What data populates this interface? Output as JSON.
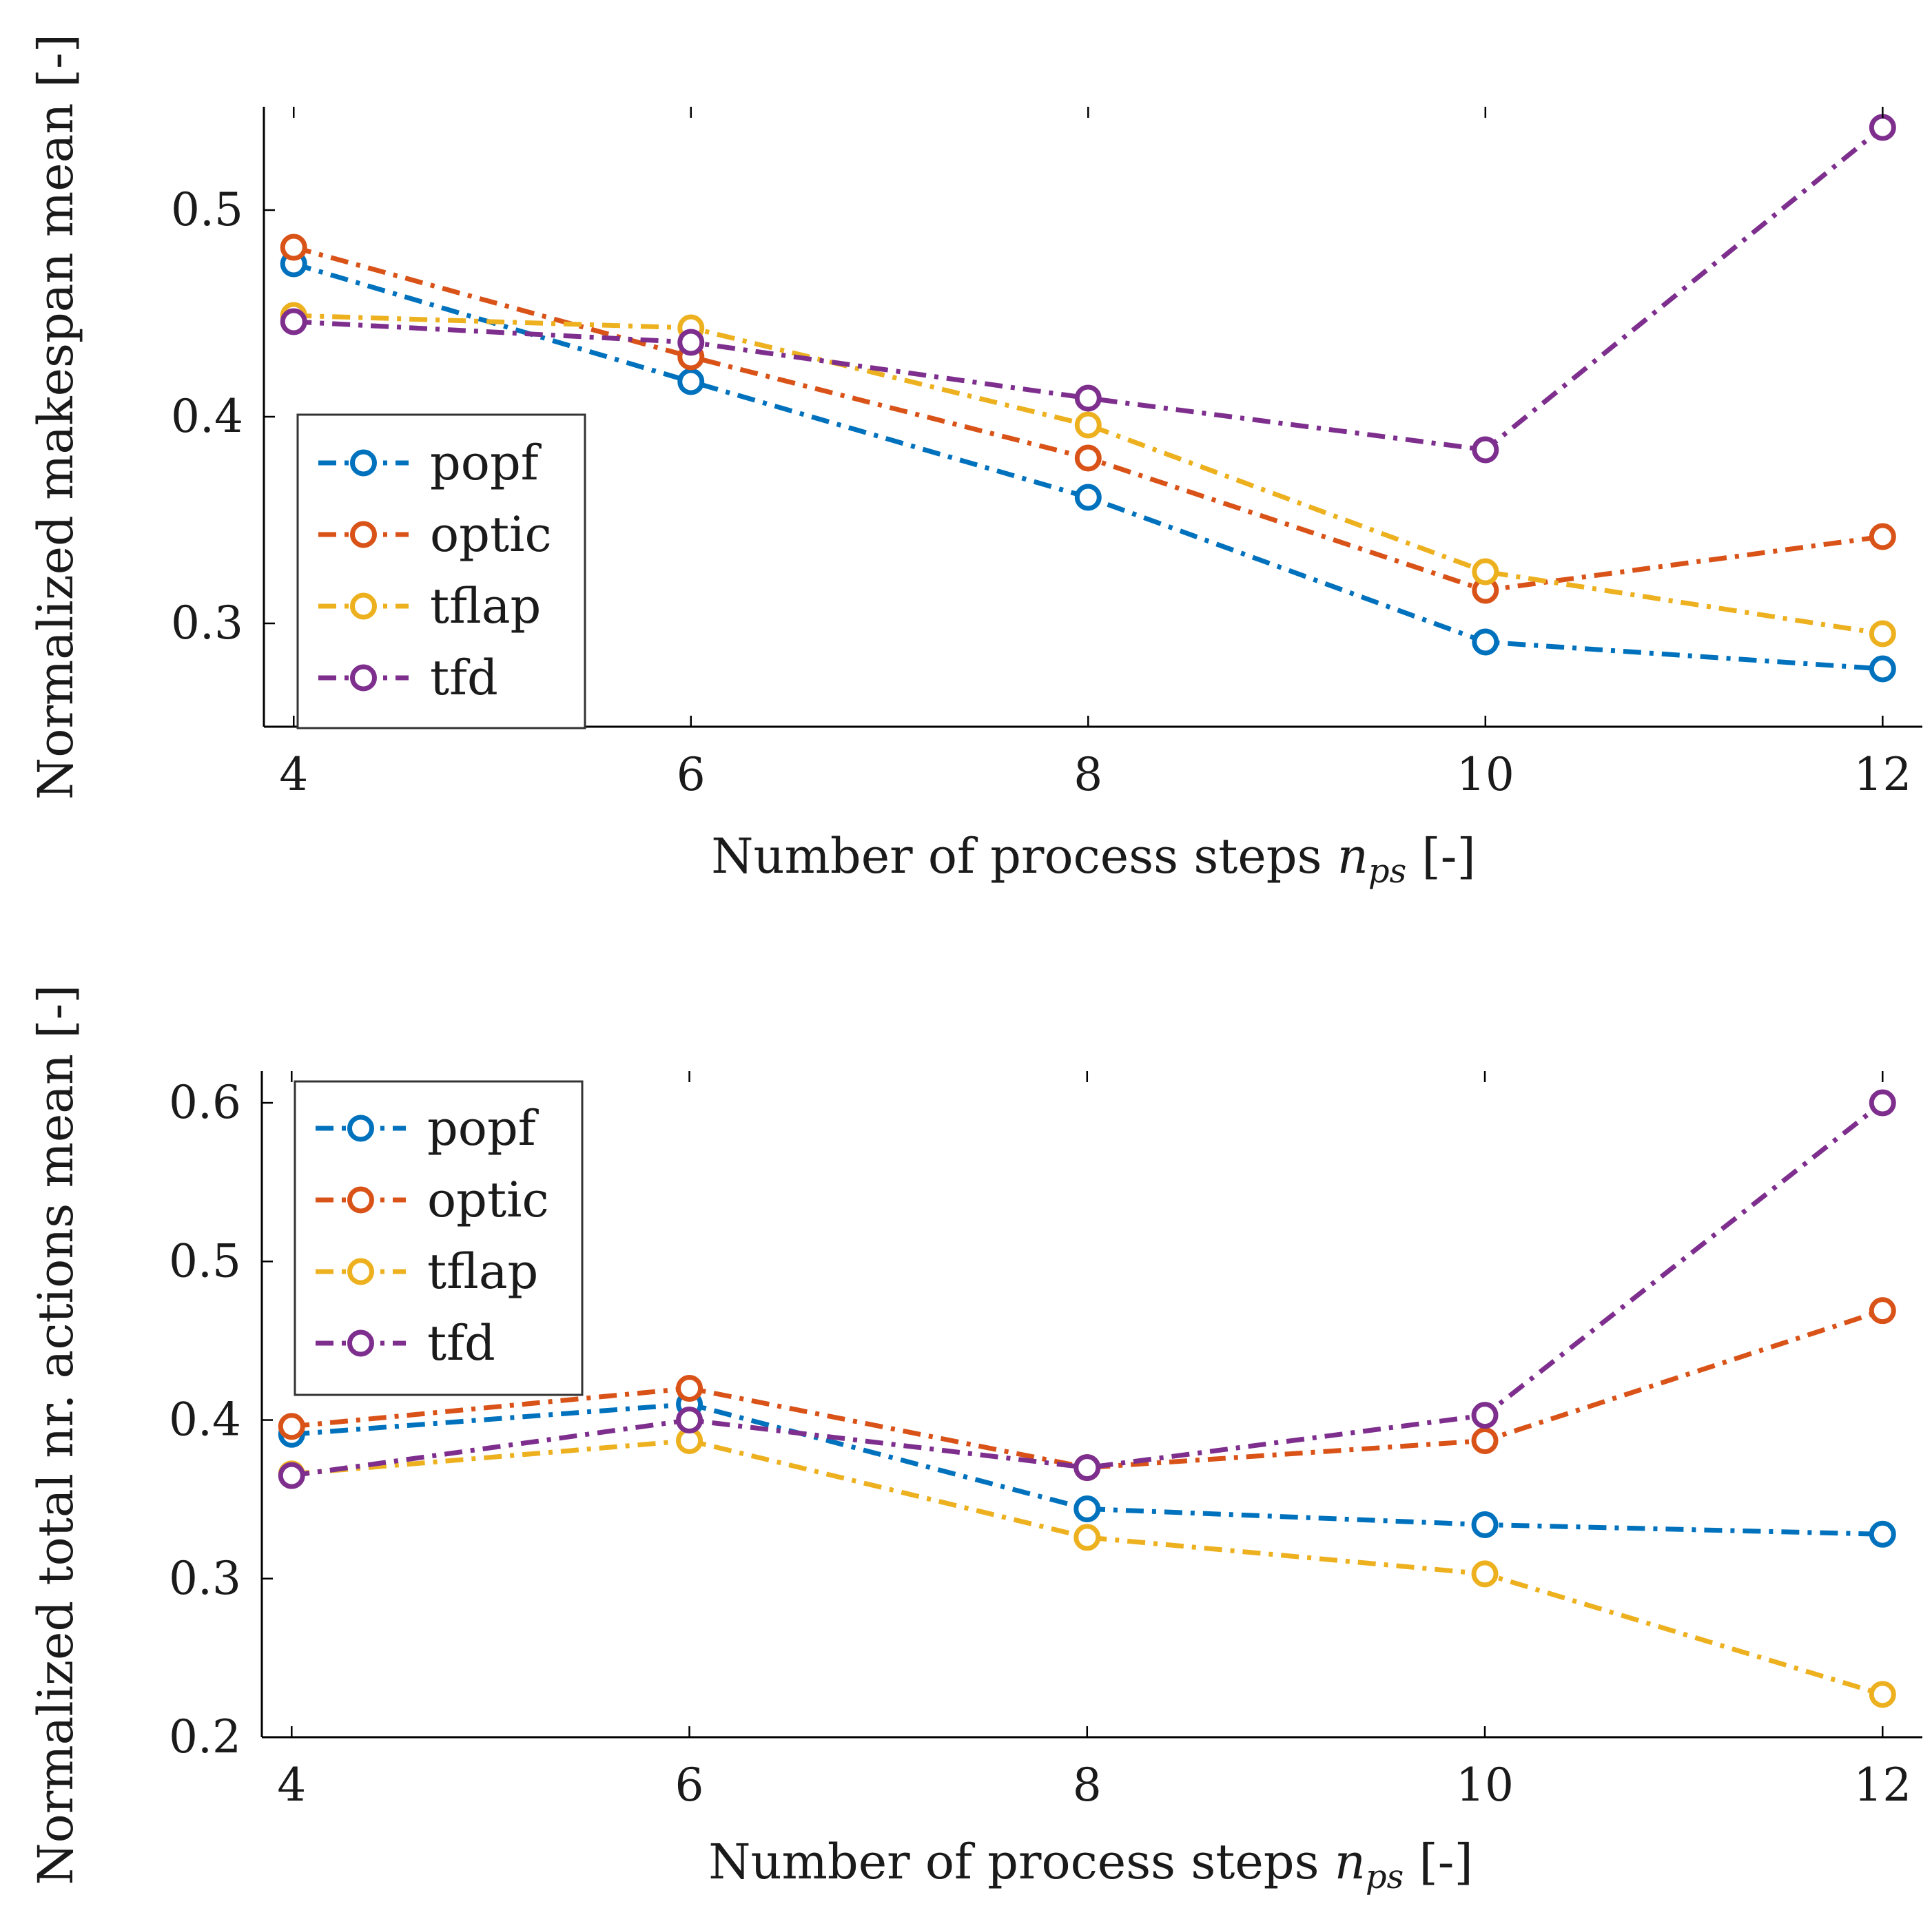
{
  "colors": {
    "popf": "#0072BD",
    "optic": "#D95319",
    "tflap": "#EDB120",
    "tfd": "#7E2F8E"
  },
  "chart_data": [
    {
      "type": "line",
      "title": "",
      "xlabel_main": "Number of process steps ",
      "xlabel_var": "n",
      "xlabel_sub": "ps",
      "xlabel_unit": " [-]",
      "ylabel": "Normalized makespan mean [-]",
      "x": [
        4,
        6,
        8,
        10,
        12
      ],
      "xlim": [
        3.85,
        12.2
      ],
      "ylim": [
        0.25,
        0.55
      ],
      "xticks": [
        "4",
        "6",
        "8",
        "10",
        "12"
      ],
      "yticks": [
        "0.3",
        "0.4",
        "0.5"
      ],
      "legend_position": "left-bottom",
      "series": [
        {
          "name": "popf",
          "color_key": "popf",
          "values": [
            0.474,
            0.417,
            0.361,
            0.291,
            0.278
          ]
        },
        {
          "name": "optic",
          "color_key": "optic",
          "values": [
            0.482,
            0.429,
            0.38,
            0.316,
            0.342
          ]
        },
        {
          "name": "tflap",
          "color_key": "tflap",
          "values": [
            0.449,
            0.443,
            0.396,
            0.325,
            0.295
          ]
        },
        {
          "name": "tfd",
          "color_key": "tfd",
          "values": [
            0.446,
            0.436,
            0.409,
            0.384,
            0.54
          ]
        }
      ]
    },
    {
      "type": "line",
      "title": "",
      "xlabel_main": "Number of process steps ",
      "xlabel_var": "n",
      "xlabel_sub": "ps",
      "xlabel_unit": " [-]",
      "ylabel": "Normalized total nr. actions mean [-]",
      "x": [
        4,
        6,
        8,
        10,
        12
      ],
      "xlim": [
        3.85,
        12.2
      ],
      "ylim": [
        0.2,
        0.62
      ],
      "xticks": [
        "4",
        "6",
        "8",
        "10",
        "12"
      ],
      "yticks": [
        "0.2",
        "0.3",
        "0.4",
        "0.5",
        "0.6"
      ],
      "legend_position": "top-left",
      "series": [
        {
          "name": "popf",
          "color_key": "popf",
          "values": [
            0.391,
            0.41,
            0.344,
            0.334,
            0.328
          ]
        },
        {
          "name": "optic",
          "color_key": "optic",
          "values": [
            0.396,
            0.42,
            0.37,
            0.387,
            0.469
          ]
        },
        {
          "name": "tflap",
          "color_key": "tflap",
          "values": [
            0.366,
            0.387,
            0.326,
            0.303,
            0.227
          ]
        },
        {
          "name": "tfd",
          "color_key": "tfd",
          "values": [
            0.365,
            0.4,
            0.37,
            0.403,
            0.6
          ]
        }
      ]
    }
  ]
}
